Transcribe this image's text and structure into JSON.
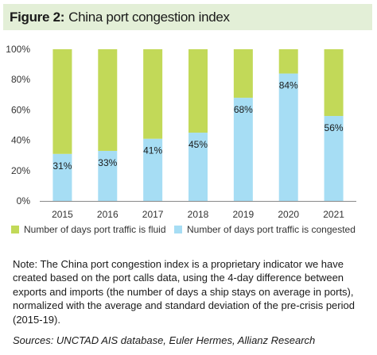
{
  "header": {
    "figure_label": "Figure 2:",
    "title": "China port congestion index"
  },
  "colors": {
    "fluid": "#c2d958",
    "congested": "#a6ddf4",
    "header_bg": "#e3efd7"
  },
  "chart_data": {
    "type": "bar",
    "stacked": true,
    "title": "China port congestion index",
    "categories": [
      "2015",
      "2016",
      "2017",
      "2018",
      "2019",
      "2020",
      "2021"
    ],
    "series": [
      {
        "name": "Number of days port traffic is congested",
        "values": [
          31,
          33,
          41,
          45,
          68,
          84,
          56
        ],
        "color": "#a6ddf4"
      },
      {
        "name": "Number of days port traffic is fluid",
        "values": [
          69,
          67,
          59,
          55,
          32,
          16,
          44
        ],
        "color": "#c2d958"
      }
    ],
    "data_labels": [
      "31%",
      "33%",
      "41%",
      "45%",
      "68%",
      "84%",
      "56%"
    ],
    "yticks": [
      "0%",
      "20%",
      "40%",
      "60%",
      "80%",
      "100%"
    ],
    "ylim": [
      0,
      100
    ],
    "legend": [
      {
        "label": "Number of days port traffic is fluid",
        "color": "#c2d958"
      },
      {
        "label": "Number of days port traffic is congested",
        "color": "#a6ddf4"
      }
    ],
    "legend_position": "bottom",
    "grid": false
  },
  "note": "Note: The China port congestion index is a proprietary indicator we have created based on the port calls data, using the 4-day difference between exports and imports (the number of days a ship stays on average in ports), normalized with the average and standard deviation of the pre-crisis period (2015-19).",
  "sources": "Sources: UNCTAD AIS database, Euler Hermes, Allianz Research"
}
